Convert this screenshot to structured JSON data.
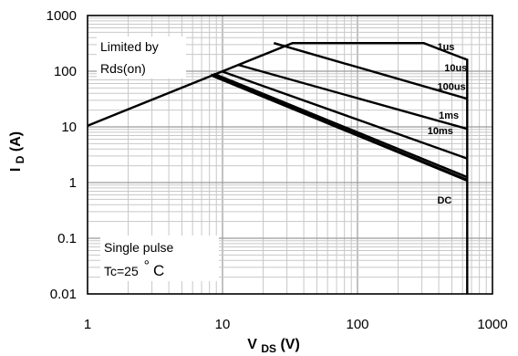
{
  "chart_data": {
    "type": "line",
    "title": "",
    "x_scale": "log",
    "y_scale": "log",
    "xlim": [
      1,
      1000
    ],
    "ylim": [
      0.01,
      1000
    ],
    "x_ticks": [
      "1",
      "10",
      "100",
      "1000"
    ],
    "y_ticks": [
      "1000",
      "100",
      "10",
      "1",
      "0.1",
      "0.01"
    ],
    "xlabel": {
      "main": "V",
      "sub": "DS",
      "unit": " (V)"
    },
    "ylabel": {
      "main": "I",
      "sub": "D",
      "unit": " (A)"
    },
    "grid": true,
    "annotations": {
      "limit_line1": "Limited by",
      "limit_line2": "Rds(on)",
      "pulse_line1": "Single pulse",
      "pulse_line2_prefix": "Tc=25",
      "pulse_line2_suffix": "C",
      "degree_symbol": "°"
    },
    "series": [
      {
        "name": "1us",
        "label_at": [
          390,
          240
        ],
        "x": [
          1,
          33,
          310,
          650,
          650
        ],
        "y": [
          10.5,
          320,
          320,
          160,
          0.01
        ]
      },
      {
        "name": "10us",
        "label_at": [
          440,
          100
        ],
        "x": [
          24,
          650
        ],
        "y": [
          320,
          32
        ]
      },
      {
        "name": "100us",
        "label_at": [
          390,
          46
        ],
        "x": [
          13,
          650
        ],
        "y": [
          130,
          9.2
        ]
      },
      {
        "name": "1ms",
        "label_at": [
          400,
          14
        ],
        "x": [
          9.8,
          650
        ],
        "y": [
          100,
          2.7
        ]
      },
      {
        "name": "10ms",
        "label_at": [
          330,
          7.4
        ],
        "x": [
          8.6,
          650
        ],
        "y": [
          90,
          1.25
        ]
      },
      {
        "name": "DC",
        "label_at": [
          390,
          0.42
        ],
        "x": [
          8.2,
          650
        ],
        "y": [
          86,
          1.1
        ]
      }
    ]
  }
}
